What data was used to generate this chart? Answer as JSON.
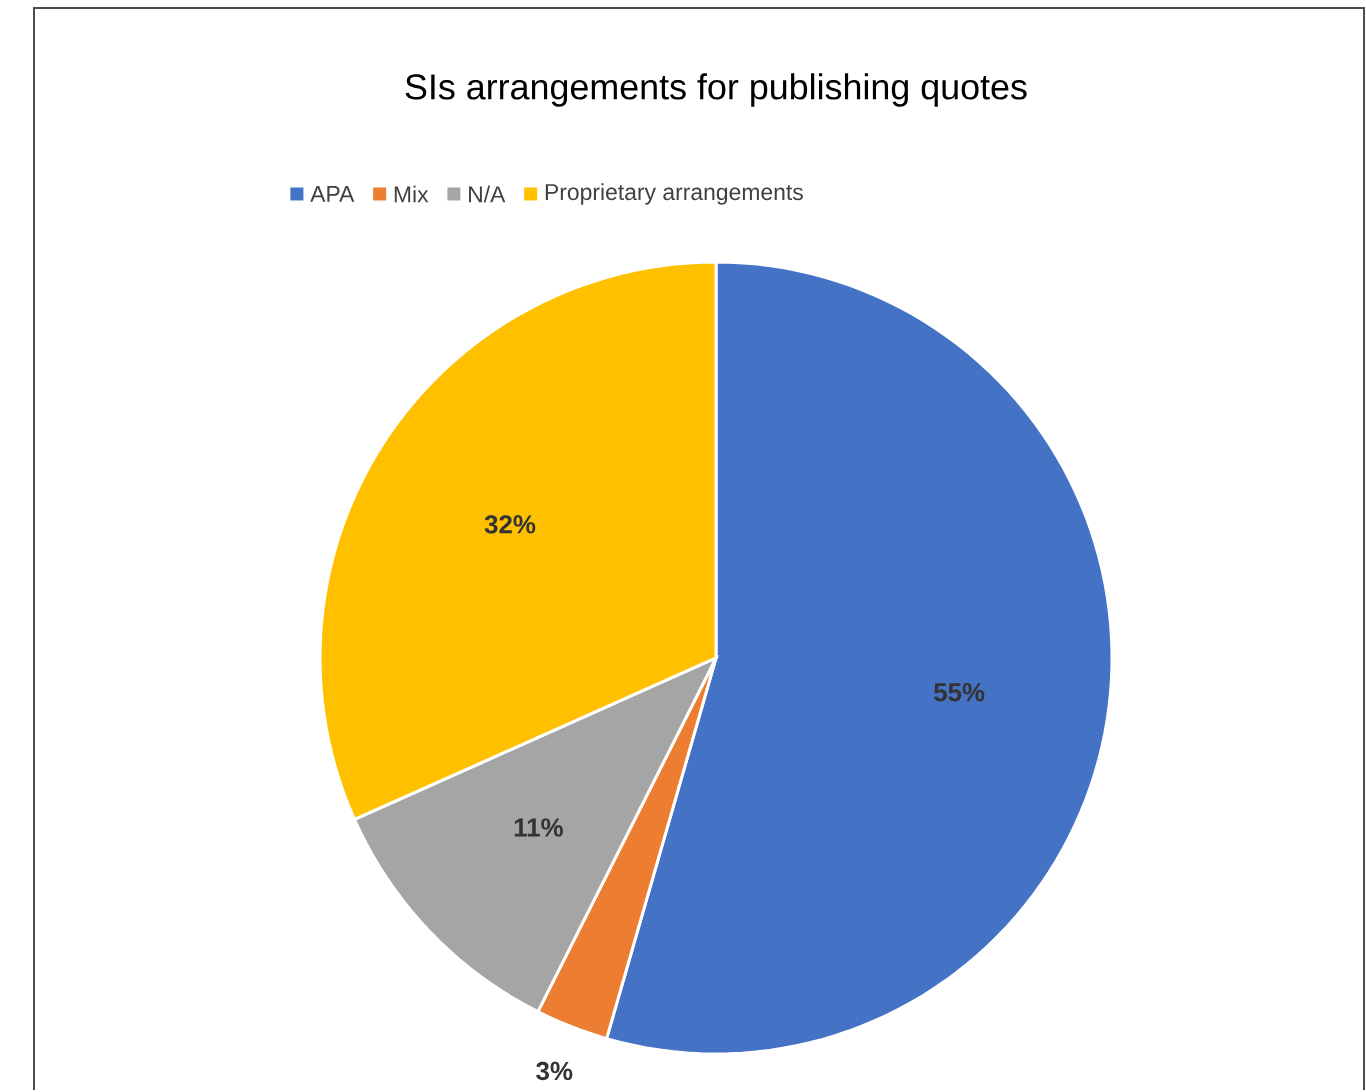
{
  "chart_data": {
    "type": "pie",
    "title": "SIs arrangements for publishing quotes",
    "categories": [
      "APA",
      "Mix",
      "N/A",
      "Proprietary arrangements"
    ],
    "values": [
      55,
      3,
      11,
      32
    ],
    "colors": [
      "#4472c4",
      "#ed7d31",
      "#a5a5a5",
      "#ffc000"
    ],
    "value_labels": [
      "55%",
      "3%",
      "11%",
      "32%"
    ],
    "legend": "top"
  }
}
